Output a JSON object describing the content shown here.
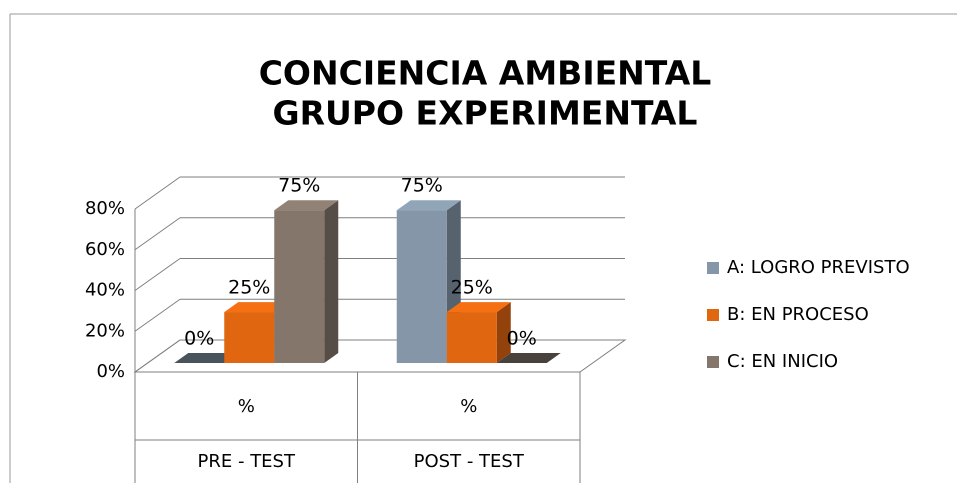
{
  "chart_data": {
    "type": "bar3d",
    "title": "CONCIENCIA AMBIENTAL",
    "subtitle": "GRUPO EXPERIMENTAL",
    "categories": [
      "%",
      "%"
    ],
    "groups": [
      "PRE - TEST",
      "POST - TEST"
    ],
    "series": [
      {
        "name": "A: LOGRO PREVISTO",
        "color": "#8496a8",
        "values": [
          0,
          75
        ],
        "value_labels": [
          "0%",
          "75%"
        ]
      },
      {
        "name": "B: EN PROCESO",
        "color": "#e0660f",
        "values": [
          25,
          25
        ],
        "value_labels": [
          "25%",
          "25%"
        ]
      },
      {
        "name": "C: EN INICIO",
        "color": "#85766b",
        "values": [
          75,
          0
        ],
        "value_labels": [
          "75%",
          "0%"
        ]
      }
    ],
    "ylim": [
      0,
      80
    ],
    "yticks": [
      {
        "value": 0,
        "label": "0%"
      },
      {
        "value": 20,
        "label": "20%"
      },
      {
        "value": 40,
        "label": "40%"
      },
      {
        "value": 60,
        "label": "60%"
      },
      {
        "value": 80,
        "label": "80%"
      }
    ],
    "grid": true,
    "legend": "right"
  }
}
